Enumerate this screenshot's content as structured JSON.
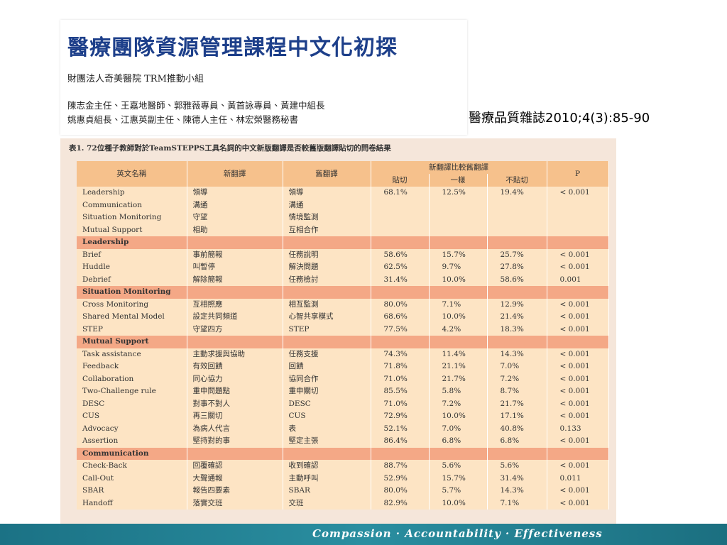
{
  "header": {
    "title": "醫療團隊資源管理課程中文化初探",
    "organization": "財團法人奇美醫院 TRM推動小組",
    "authors": [
      "陳志金主任、王嘉地醫師、郭雅薇專員、黃首詠專員、黃建中組長",
      "姚惠貞組長、江惠英副主任、陳德人主任、林宏榮醫務秘書"
    ]
  },
  "citation": "醫療品質雜誌2010;4(3):85-90",
  "table": {
    "caption": "表1. 72位種子教師對於TeamSTEPPS工具名詞的中文新版翻譯是否較舊版翻譯貼切的問卷結果",
    "columns": [
      "英文名稱",
      "新翻譯",
      "舊翻譯",
      "新翻譯比較舊翻譯",
      "P"
    ],
    "subcolumns": [
      "貼切",
      "一樣",
      "不貼切"
    ],
    "rows": [
      [
        "Leadership",
        "領導",
        "領導",
        "68.1%",
        "12.5%",
        "19.4%",
        "< 0.001"
      ],
      [
        "Communication",
        "溝通",
        "溝通"
      ],
      [
        "Situation Monitoring",
        "守望",
        "情境監測"
      ],
      [
        "Mutual Support",
        "相助",
        "互相合作"
      ],
      [
        "Leadership"
      ],
      [
        "Brief",
        "事前簡報",
        "任務說明",
        "58.6%",
        "15.7%",
        "25.7%",
        "< 0.001"
      ],
      [
        "Huddle",
        "叫暫停",
        "解決問題",
        "62.5%",
        "9.7%",
        "27.8%",
        "< 0.001"
      ],
      [
        "Debrief",
        "解除簡報",
        "任務檢討",
        "31.4%",
        "10.0%",
        "58.6%",
        "0.001"
      ],
      [
        "Situation Monitoring"
      ],
      [
        "Cross Monitoring",
        "互相照應",
        "相互監測",
        "80.0%",
        "7.1%",
        "12.9%",
        "< 0.001"
      ],
      [
        "Shared Mental Model",
        "設定共同頻道",
        "心智共享模式",
        "68.6%",
        "10.0%",
        "21.4%",
        "< 0.001"
      ],
      [
        "STEP",
        "守望四方",
        "STEP",
        "77.5%",
        "4.2%",
        "18.3%",
        "< 0.001"
      ],
      [
        "Mutual Support"
      ],
      [
        "Task assistance",
        "主動求援與協助",
        "任務支援",
        "74.3%",
        "11.4%",
        "14.3%",
        "< 0.001"
      ],
      [
        "Feedback",
        "有效回饋",
        "回饋",
        "71.8%",
        "21.1%",
        "7.0%",
        "< 0.001"
      ],
      [
        "Collaboration",
        "同心協力",
        "協同合作",
        "71.0%",
        "21.7%",
        "7.2%",
        "< 0.001"
      ],
      [
        "Two-Challenge rule",
        "重申問題點",
        "重申關切",
        "85.5%",
        "5.8%",
        "8.7%",
        "< 0.001"
      ],
      [
        "DESC",
        "對事不對人",
        "DESC",
        "71.0%",
        "7.2%",
        "21.7%",
        "< 0.001"
      ],
      [
        "CUS",
        "再三關切",
        "CUS",
        "72.9%",
        "10.0%",
        "17.1%",
        "< 0.001"
      ],
      [
        "Advocacy",
        "為病人代言",
        "表",
        "52.1%",
        "7.0%",
        "40.8%",
        "0.133"
      ],
      [
        "Assertion",
        "堅持對的事",
        "堅定主張",
        "86.4%",
        "6.8%",
        "6.8%",
        "< 0.001"
      ],
      [
        "Communication"
      ],
      [
        "Check-Back",
        "回覆確認",
        "收到確認",
        "88.7%",
        "5.6%",
        "5.6%",
        "< 0.001"
      ],
      [
        "Call-Out",
        "大聲通報",
        "主動呼叫",
        "52.9%",
        "15.7%",
        "31.4%",
        "0.011"
      ],
      [
        "SBAR",
        "報告四要素",
        "SBAR",
        "80.0%",
        "5.7%",
        "14.3%",
        "< 0.001"
      ],
      [
        "Handoff",
        "落實交班",
        "交班",
        "82.9%",
        "10.0%",
        "7.1%",
        "< 0.001"
      ]
    ]
  },
  "footer": "Compassion · Accountability · Effectiveness"
}
